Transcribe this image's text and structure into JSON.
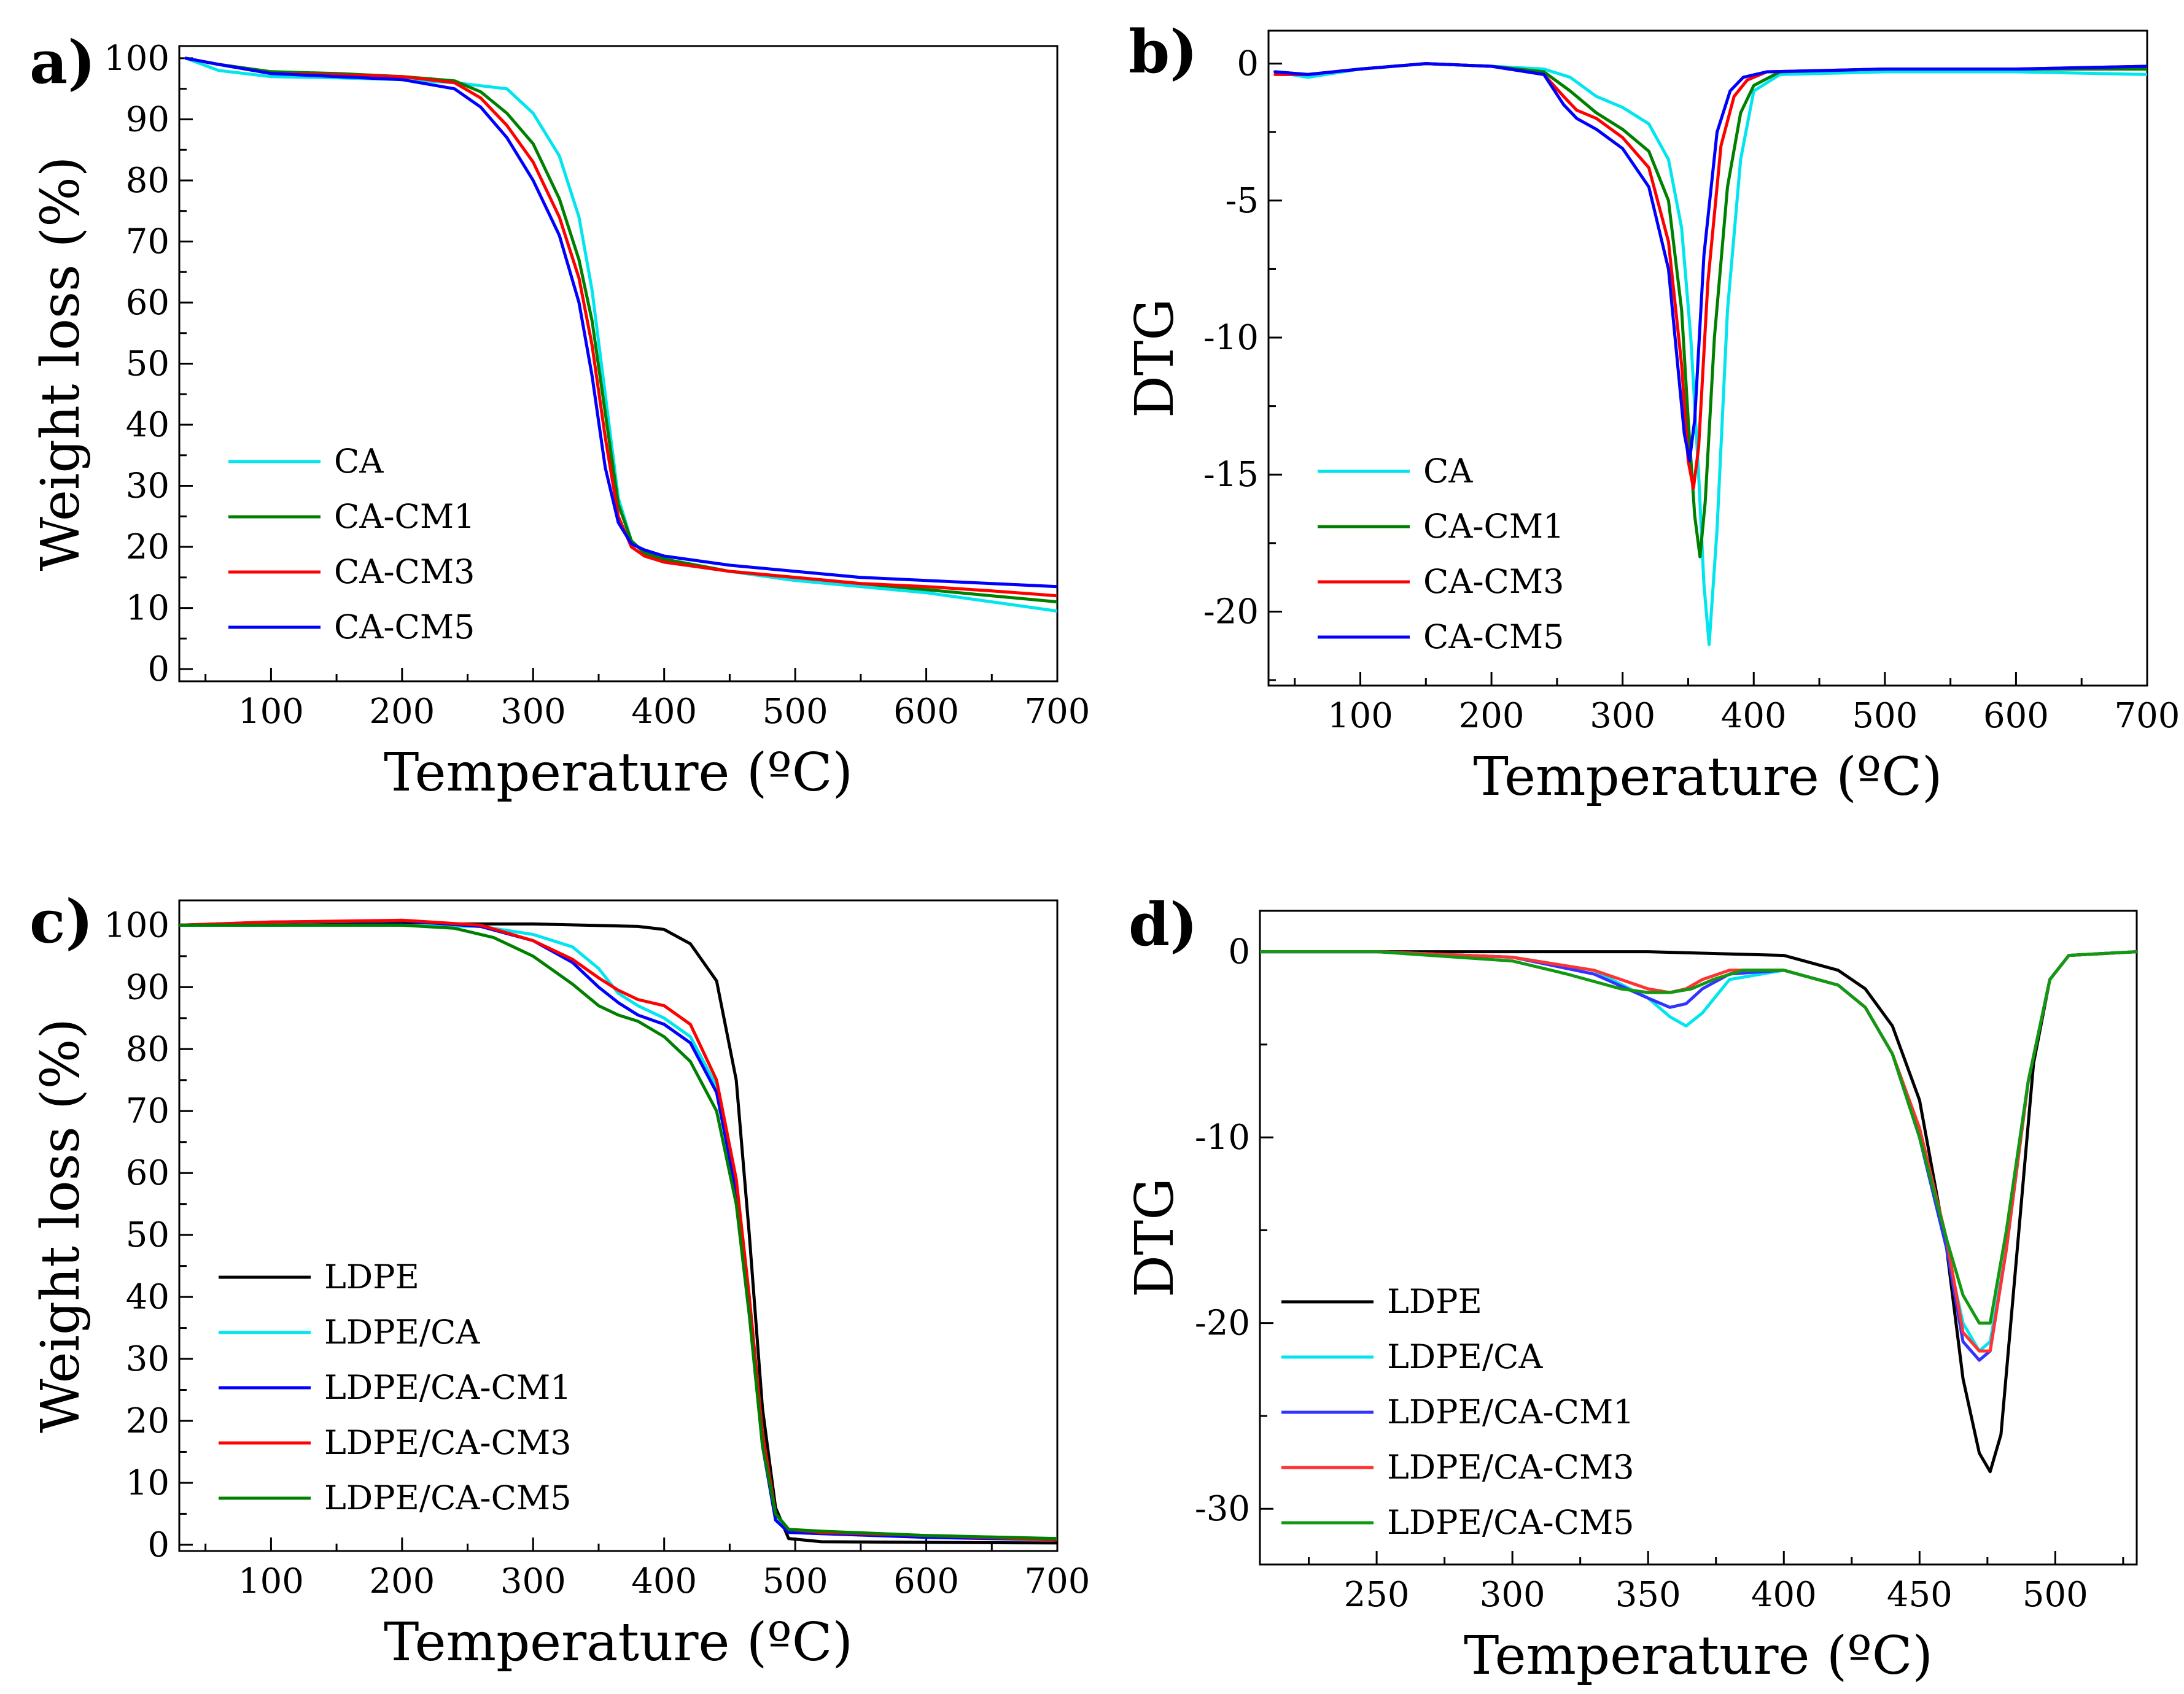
{
  "chart_data": [
    {
      "id": "a",
      "panel_label": "a)",
      "type": "line",
      "xlabel": "Temperature (ºC)",
      "ylabel": "Weight loss (%)",
      "xlim": [
        30,
        700
      ],
      "ylim": [
        -2,
        102
      ],
      "xticks": [
        100,
        200,
        300,
        400,
        500,
        600,
        700
      ],
      "yticks": [
        0,
        10,
        20,
        30,
        40,
        50,
        60,
        70,
        80,
        90,
        100
      ],
      "legend_position": "lower-left",
      "series": [
        {
          "name": "CA",
          "color": "#00e5ee",
          "x": [
            35,
            60,
            100,
            150,
            200,
            240,
            260,
            280,
            300,
            320,
            335,
            345,
            355,
            365,
            375,
            385,
            400,
            450,
            500,
            550,
            600,
            650,
            700
          ],
          "y": [
            100,
            98,
            97,
            96.8,
            96.5,
            96,
            95.5,
            95,
            91,
            84,
            74,
            62,
            45,
            28,
            21,
            19,
            18,
            16,
            14.5,
            13.5,
            12.5,
            11,
            9.5
          ]
        },
        {
          "name": "CA-CM1",
          "color": "#008000",
          "x": [
            35,
            60,
            100,
            150,
            200,
            240,
            260,
            280,
            300,
            320,
            335,
            345,
            355,
            365,
            375,
            385,
            400,
            450,
            500,
            550,
            600,
            650,
            700
          ],
          "y": [
            100,
            99,
            97.8,
            97.5,
            97,
            96.3,
            94.5,
            91,
            86,
            77,
            67,
            57,
            42,
            27,
            21,
            19,
            18,
            16,
            15,
            14,
            13,
            12,
            11
          ]
        },
        {
          "name": "CA-CM3",
          "color": "#ff0000",
          "x": [
            35,
            60,
            100,
            150,
            200,
            240,
            260,
            280,
            300,
            320,
            335,
            345,
            355,
            365,
            375,
            385,
            400,
            450,
            500,
            550,
            600,
            650,
            700
          ],
          "y": [
            100,
            99,
            97.5,
            97.3,
            97,
            96,
            93.5,
            89,
            83,
            74,
            64,
            53,
            38,
            25,
            20,
            18.5,
            17.5,
            16,
            15,
            14,
            13.5,
            12.8,
            12
          ]
        },
        {
          "name": "CA-CM5",
          "color": "#0000ff",
          "x": [
            35,
            60,
            100,
            150,
            200,
            240,
            260,
            280,
            300,
            320,
            335,
            345,
            355,
            365,
            375,
            385,
            400,
            450,
            500,
            550,
            600,
            650,
            700
          ],
          "y": [
            100,
            99,
            97.5,
            97,
            96.5,
            95,
            92,
            87,
            80,
            71,
            60,
            48,
            33,
            24,
            20.5,
            19.5,
            18.5,
            17,
            16,
            15,
            14.5,
            14,
            13.5
          ]
        }
      ]
    },
    {
      "id": "b",
      "panel_label": "b)",
      "type": "line",
      "xlabel": "Temperature (ºC)",
      "ylabel": "DTG",
      "xlim": [
        30,
        700
      ],
      "ylim": [
        -22.7,
        1.2
      ],
      "xticks": [
        100,
        200,
        300,
        400,
        500,
        600,
        700
      ],
      "yticks": [
        0,
        -5,
        -10,
        -15,
        -20
      ],
      "legend_position": "lower-left",
      "series": [
        {
          "name": "CA",
          "color": "#00e5ee",
          "x": [
            35,
            60,
            100,
            150,
            200,
            240,
            260,
            280,
            300,
            320,
            335,
            345,
            352,
            358,
            362,
            366,
            372,
            380,
            390,
            400,
            420,
            500,
            600,
            700
          ],
          "y": [
            -0.3,
            -0.5,
            -0.2,
            0,
            -0.1,
            -0.2,
            -0.5,
            -1.2,
            -1.6,
            -2.2,
            -3.5,
            -6,
            -10,
            -15,
            -19,
            -21.2,
            -17,
            -9,
            -3.5,
            -1,
            -0.4,
            -0.3,
            -0.3,
            -0.4
          ]
        },
        {
          "name": "CA-CM1",
          "color": "#008000",
          "x": [
            35,
            60,
            100,
            150,
            200,
            240,
            260,
            280,
            300,
            320,
            335,
            345,
            350,
            355,
            359,
            363,
            370,
            380,
            390,
            400,
            420,
            500,
            600,
            700
          ],
          "y": [
            -0.3,
            -0.4,
            -0.2,
            0,
            -0.1,
            -0.3,
            -1,
            -1.8,
            -2.4,
            -3.2,
            -5,
            -9,
            -13,
            -16.5,
            -18,
            -16,
            -10,
            -4.5,
            -1.8,
            -0.8,
            -0.3,
            -0.2,
            -0.2,
            -0.2
          ]
        },
        {
          "name": "CA-CM3",
          "color": "#ff0000",
          "x": [
            35,
            60,
            100,
            150,
            200,
            240,
            255,
            265,
            280,
            300,
            320,
            335,
            345,
            350,
            354,
            358,
            365,
            375,
            385,
            395,
            410,
            500,
            600,
            700
          ],
          "y": [
            -0.4,
            -0.4,
            -0.2,
            0,
            -0.1,
            -0.4,
            -1.2,
            -1.7,
            -2,
            -2.7,
            -3.8,
            -6.5,
            -11,
            -14.5,
            -15.5,
            -14,
            -8,
            -3,
            -1.2,
            -0.6,
            -0.3,
            -0.2,
            -0.2,
            -0.1
          ]
        },
        {
          "name": "CA-CM5",
          "color": "#0000ff",
          "x": [
            35,
            60,
            100,
            150,
            200,
            240,
            255,
            265,
            280,
            300,
            320,
            335,
            342,
            347,
            351,
            355,
            362,
            372,
            382,
            392,
            410,
            500,
            600,
            700
          ],
          "y": [
            -0.3,
            -0.4,
            -0.2,
            0,
            -0.1,
            -0.4,
            -1.5,
            -2,
            -2.4,
            -3.1,
            -4.5,
            -7.5,
            -11,
            -13.5,
            -14.5,
            -13,
            -7,
            -2.5,
            -1,
            -0.5,
            -0.3,
            -0.2,
            -0.2,
            -0.1
          ]
        }
      ]
    },
    {
      "id": "c",
      "panel_label": "c)",
      "type": "line",
      "xlabel": "Temperature (ºC)",
      "ylabel": "Weight loss (%)",
      "xlim": [
        30,
        700
      ],
      "ylim": [
        -1,
        104
      ],
      "xticks": [
        100,
        200,
        300,
        400,
        500,
        600,
        700
      ],
      "yticks": [
        0,
        10,
        20,
        30,
        40,
        50,
        60,
        70,
        80,
        90,
        100
      ],
      "legend_position": "lower-left",
      "series": [
        {
          "name": "LDPE",
          "color": "#000000",
          "x": [
            30,
            100,
            200,
            300,
            380,
            400,
            420,
            440,
            455,
            465,
            475,
            485,
            495,
            520,
            600,
            700
          ],
          "y": [
            100,
            100,
            100.2,
            100.2,
            99.8,
            99.3,
            97,
            91,
            75,
            50,
            22,
            6,
            1,
            0.5,
            0.4,
            0.3
          ]
        },
        {
          "name": "LDPE/CA",
          "color": "#00e5ee",
          "x": [
            30,
            100,
            200,
            260,
            300,
            330,
            350,
            365,
            380,
            400,
            420,
            440,
            455,
            465,
            475,
            485,
            495,
            520,
            600,
            700
          ],
          "y": [
            100,
            100,
            100,
            99.8,
            98.5,
            96.5,
            93,
            89,
            87,
            85,
            82,
            74,
            58,
            40,
            18,
            5,
            2,
            1.8,
            1.5,
            1
          ]
        },
        {
          "name": "LDPE/CA-CM1",
          "color": "#0000ff",
          "x": [
            30,
            100,
            200,
            260,
            300,
            330,
            350,
            365,
            380,
            400,
            420,
            440,
            455,
            465,
            475,
            485,
            495,
            520,
            600,
            700
          ],
          "y": [
            100,
            100.5,
            100.7,
            99.8,
            97.5,
            94,
            90,
            87.5,
            85.5,
            84,
            81,
            73,
            57,
            38,
            16,
            4,
            2,
            1.8,
            1.2,
            0.8
          ]
        },
        {
          "name": "LDPE/CA-CM3",
          "color": "#ff0000",
          "x": [
            30,
            100,
            200,
            260,
            300,
            330,
            350,
            365,
            380,
            400,
            420,
            440,
            455,
            465,
            475,
            485,
            495,
            520,
            600,
            700
          ],
          "y": [
            100,
            100.5,
            100.8,
            100,
            97.5,
            94.5,
            91.5,
            89.5,
            88,
            87,
            84,
            75,
            59,
            40,
            18,
            5,
            2.5,
            2,
            1.5,
            0.8
          ]
        },
        {
          "name": "LDPE/CA-CM5",
          "color": "#008000",
          "x": [
            30,
            100,
            200,
            240,
            270,
            300,
            330,
            350,
            365,
            380,
            400,
            420,
            440,
            455,
            465,
            475,
            485,
            495,
            520,
            600,
            700
          ],
          "y": [
            100,
            100,
            100,
            99.5,
            98,
            95,
            90.5,
            87,
            85.5,
            84.5,
            82,
            78,
            70,
            55,
            37,
            16,
            5,
            2.5,
            2.2,
            1.5,
            1
          ]
        }
      ]
    },
    {
      "id": "d",
      "panel_label": "d)",
      "type": "line",
      "xlabel": "Temperature (ºC)",
      "ylabel": "DTG",
      "xlim": [
        207,
        530
      ],
      "ylim": [
        -33,
        2.2
      ],
      "xticks": [
        250,
        300,
        350,
        400,
        450,
        500
      ],
      "yticks": [
        0,
        -10,
        -20,
        -30
      ],
      "legend_position": "lower-left",
      "series": [
        {
          "name": "LDPE",
          "color": "#000000",
          "x": [
            207,
            250,
            300,
            350,
            400,
            420,
            430,
            440,
            450,
            460,
            466,
            472,
            476,
            480,
            486,
            492,
            498,
            505,
            530
          ],
          "y": [
            0,
            0,
            0,
            0,
            -0.2,
            -1,
            -2,
            -4,
            -8,
            -16,
            -23,
            -27,
            -28,
            -26,
            -16,
            -6,
            -1.5,
            -0.2,
            0
          ]
        },
        {
          "name": "LDPE/CA",
          "color": "#00e5ee",
          "x": [
            207,
            250,
            300,
            330,
            350,
            358,
            364,
            370,
            380,
            400,
            420,
            430,
            440,
            450,
            460,
            466,
            472,
            476,
            482,
            490,
            498,
            505,
            530
          ],
          "y": [
            0,
            0,
            -0.3,
            -1,
            -2.5,
            -3.5,
            -4,
            -3.3,
            -1.5,
            -1,
            -1.8,
            -3,
            -5.5,
            -10,
            -16,
            -20,
            -21.5,
            -21,
            -16,
            -7,
            -1.5,
            -0.2,
            0
          ]
        },
        {
          "name": "LDPE/CA-CM1",
          "color": "#3333ff",
          "x": [
            207,
            250,
            300,
            330,
            350,
            358,
            364,
            370,
            380,
            400,
            420,
            430,
            440,
            450,
            460,
            466,
            472,
            476,
            482,
            490,
            498,
            505,
            530
          ],
          "y": [
            0,
            0,
            -0.3,
            -1.2,
            -2.5,
            -3,
            -2.8,
            -2,
            -1.2,
            -1,
            -1.8,
            -3,
            -5.5,
            -10,
            -16,
            -21,
            -22,
            -21.5,
            -16,
            -7,
            -1.5,
            -0.2,
            0
          ]
        },
        {
          "name": "LDPE/CA-CM3",
          "color": "#ff3333",
          "x": [
            207,
            250,
            300,
            330,
            350,
            358,
            364,
            370,
            380,
            400,
            420,
            430,
            440,
            450,
            460,
            466,
            472,
            476,
            482,
            490,
            498,
            505,
            530
          ],
          "y": [
            0,
            0,
            -0.3,
            -1,
            -2,
            -2.2,
            -2,
            -1.5,
            -1,
            -1,
            -1.8,
            -3,
            -5.5,
            -9.5,
            -15.5,
            -20.5,
            -21.5,
            -21.5,
            -16,
            -7,
            -1.5,
            -0.2,
            0
          ]
        },
        {
          "name": "LDPE/CA-CM5",
          "color": "#119911",
          "x": [
            207,
            250,
            300,
            320,
            340,
            350,
            358,
            366,
            374,
            385,
            400,
            420,
            430,
            440,
            450,
            460,
            466,
            472,
            476,
            482,
            490,
            498,
            505,
            530
          ],
          "y": [
            0,
            0,
            -0.5,
            -1.2,
            -2,
            -2.2,
            -2.2,
            -2,
            -1.5,
            -1,
            -1,
            -1.8,
            -3,
            -5.5,
            -10,
            -15.5,
            -18.5,
            -20,
            -20,
            -15,
            -7,
            -1.5,
            -0.2,
            0
          ]
        }
      ]
    }
  ]
}
